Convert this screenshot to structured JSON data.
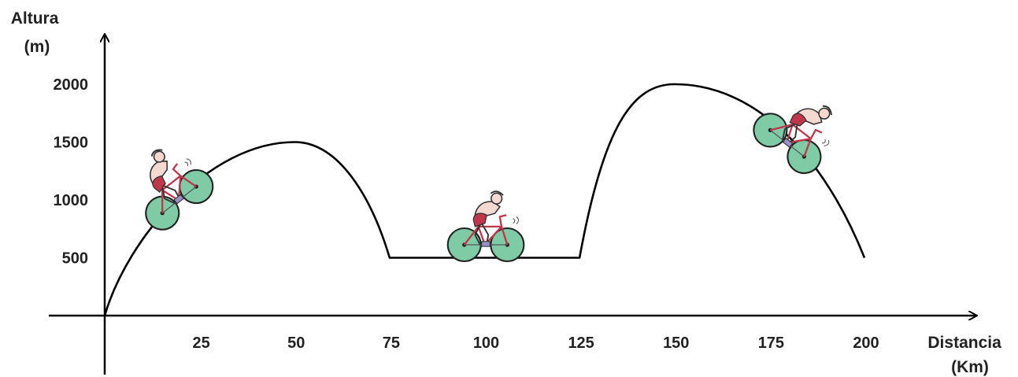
{
  "chart_data": {
    "type": "line",
    "ylabel_lines": [
      "Altura",
      "(m)"
    ],
    "xlabel_lines": [
      "Distancia",
      "(Km)"
    ],
    "x_ticks": [
      25,
      50,
      75,
      100,
      125,
      150,
      175,
      200
    ],
    "y_ticks": [
      500,
      1000,
      1500,
      2000
    ],
    "xlim": [
      0,
      200
    ],
    "ylim": [
      0,
      2000
    ],
    "grid": false,
    "series": [
      {
        "x": [
          0,
          50,
          75,
          125,
          150,
          200
        ],
        "y": [
          0,
          1500,
          500,
          500,
          2000,
          500
        ],
        "segments": [
          "concave-rise",
          "fall",
          "flat",
          "rise",
          "fall"
        ]
      }
    ],
    "colors": {
      "line": "#000000",
      "wheel": "#7ecba6",
      "jersey": "#c0364a"
    },
    "illustrations": [
      {
        "icon": "cyclist-climbing-icon",
        "near_x": 20
      },
      {
        "icon": "cyclist-flat-icon",
        "near_x": 100
      },
      {
        "icon": "cyclist-descending-icon",
        "near_x": 183
      }
    ]
  }
}
